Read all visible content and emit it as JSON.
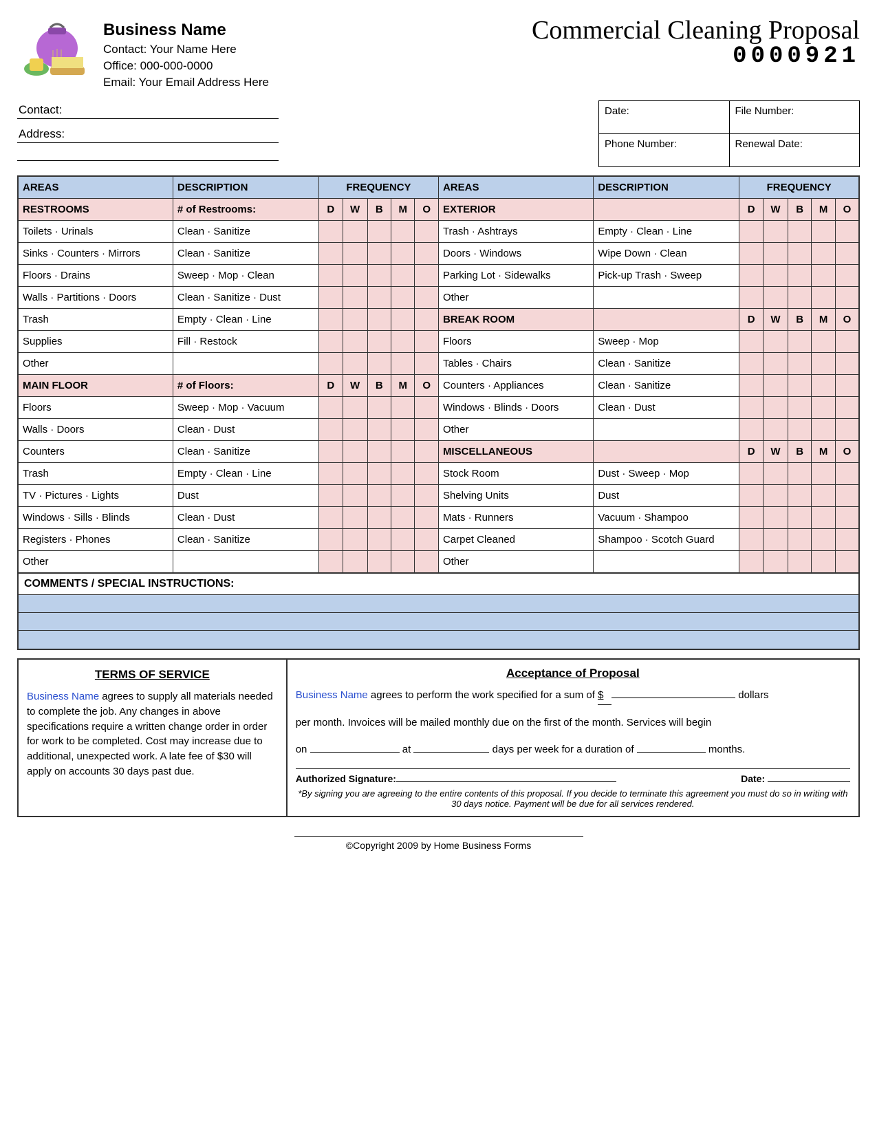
{
  "header": {
    "business_name": "Business Name",
    "contact_label": "Contact:",
    "contact_value": "Your Name Here",
    "office_label": "Office:",
    "office_value": "000-000-0000",
    "email_label": "Email:",
    "email_value": "Your Email Address Here",
    "doc_title": "Commercial Cleaning Proposal",
    "doc_number": "0000921"
  },
  "client": {
    "contact_label": "Contact:",
    "address_label": "Address:"
  },
  "infobox": {
    "date": "Date:",
    "file_number": "File Number:",
    "phone": "Phone Number:",
    "renewal": "Renewal Date:"
  },
  "table_headers": {
    "areas": "AREAS",
    "description": "DESCRIPTION",
    "frequency": "FREQUENCY",
    "freq_codes": [
      "D",
      "W",
      "B",
      "M",
      "O"
    ]
  },
  "sections_left": [
    {
      "title": "RESTROOMS",
      "subtitle": "# of Restrooms:",
      "rows": [
        {
          "a": "Toilets · Urinals",
          "d": "Clean · Sanitize"
        },
        {
          "a": "Sinks · Counters · Mirrors",
          "d": "Clean · Sanitize"
        },
        {
          "a": "Floors · Drains",
          "d": "Sweep · Mop · Clean"
        },
        {
          "a": "Walls · Partitions · Doors",
          "d": "Clean · Sanitize · Dust"
        },
        {
          "a": "Trash",
          "d": "Empty · Clean · Line"
        },
        {
          "a": "Supplies",
          "d": "Fill · Restock"
        },
        {
          "a": "Other",
          "d": ""
        }
      ]
    },
    {
      "title": "MAIN FLOOR",
      "subtitle": "# of Floors:",
      "rows": [
        {
          "a": "Floors",
          "d": "Sweep · Mop · Vacuum"
        },
        {
          "a": "Walls · Doors",
          "d": "Clean · Dust"
        },
        {
          "a": "Counters",
          "d": "Clean · Sanitize"
        },
        {
          "a": "Trash",
          "d": "Empty · Clean · Line"
        },
        {
          "a": "TV · Pictures · Lights",
          "d": "Dust"
        },
        {
          "a": "Windows · Sills · Blinds",
          "d": "Clean · Dust"
        },
        {
          "a": "Registers · Phones",
          "d": "Clean · Sanitize"
        },
        {
          "a": "Other",
          "d": ""
        }
      ]
    }
  ],
  "sections_right": [
    {
      "title": "EXTERIOR",
      "subtitle": "",
      "rows": [
        {
          "a": "Trash · Ashtrays",
          "d": "Empty · Clean · Line"
        },
        {
          "a": "Doors · Windows",
          "d": "Wipe Down · Clean"
        },
        {
          "a": "Parking Lot · Sidewalks",
          "d": "Pick-up Trash · Sweep"
        },
        {
          "a": "Other",
          "d": ""
        }
      ]
    },
    {
      "title": "BREAK ROOM",
      "subtitle": "",
      "rows": [
        {
          "a": "Floors",
          "d": "Sweep · Mop"
        },
        {
          "a": "Tables · Chairs",
          "d": "Clean · Sanitize"
        },
        {
          "a": "Counters · Appliances",
          "d": "Clean · Sanitize"
        },
        {
          "a": "Windows · Blinds · Doors",
          "d": "Clean · Dust"
        },
        {
          "a": "Other",
          "d": ""
        }
      ]
    },
    {
      "title": "MISCELLANEOUS",
      "subtitle": "",
      "rows": [
        {
          "a": "Stock Room",
          "d": "Dust · Sweep · Mop"
        },
        {
          "a": "Shelving Units",
          "d": "Dust"
        },
        {
          "a": "Mats · Runners",
          "d": "Vacuum · Shampoo"
        },
        {
          "a": "Carpet Cleaned",
          "d": "Shampoo · Scotch Guard"
        },
        {
          "a": "Other",
          "d": ""
        }
      ]
    }
  ],
  "comments_label": "COMMENTS / SPECIAL INSTRUCTIONS:",
  "terms": {
    "title": "TERMS OF SERVICE",
    "business_name": "Business Name",
    "body": " agrees to supply all materials needed to complete the job.  Any changes in above specifications require a written change order in order for work to be completed.  Cost may increase due to additional, unexpected work.  A late fee of $30 will apply on accounts 30 days past due."
  },
  "acceptance": {
    "title": "Acceptance of Proposal",
    "business_name": "Business Name",
    "line1a": " agrees to perform the work specified for a sum of ",
    "line1b": " dollars",
    "line2": "per month.  Invoices will be mailed monthly due on the first of the month.  Services will begin",
    "line3a": "on",
    "line3b": "at",
    "line3c": "days per week for a duration of",
    "line3d": "months.",
    "sig_label": "Authorized Signature:",
    "date_label": "Date:",
    "fine_print": "*By signing you are agreeing to the entire contents of this proposal.  If you decide to terminate this agreement you must do so in writing with 30 days notice.  Payment will be due for all services rendered."
  },
  "copyright": "©Copyright 2009 by Home Business Forms",
  "colors": {
    "header_bg": "#bcd0ea",
    "section_bg": "#f5d7d7",
    "link_blue": "#2a4fcf",
    "border": "#333333"
  }
}
